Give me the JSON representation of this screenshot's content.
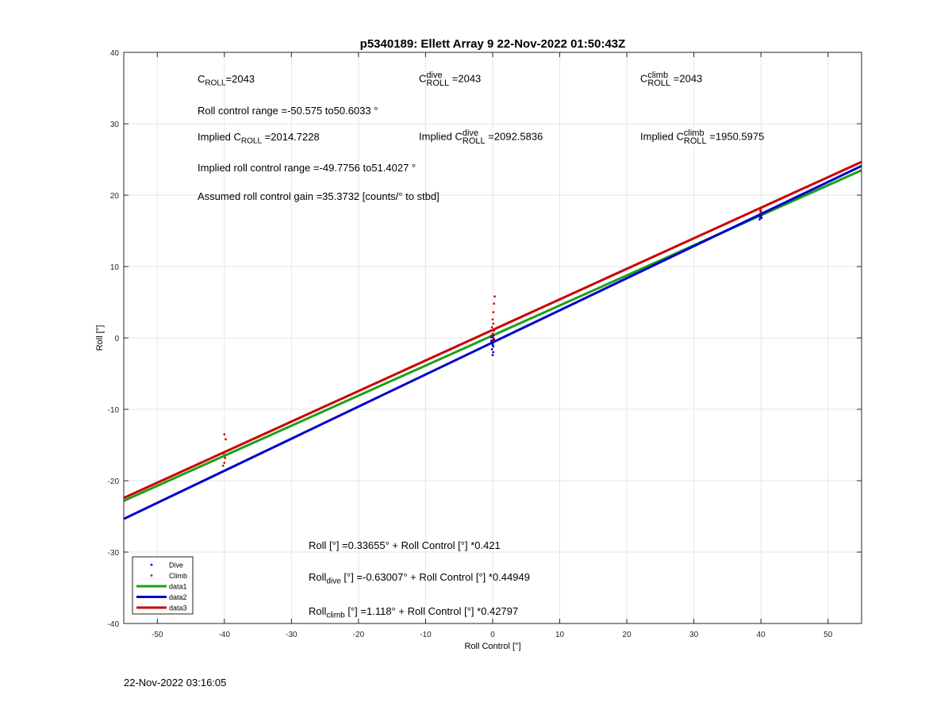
{
  "chart_data": {
    "type": "line",
    "title": "p5340189: Ellett Array 9 22-Nov-2022 01:50:43Z",
    "xlabel": "Roll Control [°]",
    "ylabel": "Roll [°]",
    "xlim": [
      -55,
      55
    ],
    "ylim": [
      -40,
      40
    ],
    "xticks": [
      -50,
      -40,
      -30,
      -20,
      -10,
      0,
      10,
      20,
      30,
      40,
      50
    ],
    "yticks": [
      -40,
      -30,
      -20,
      -10,
      0,
      10,
      20,
      30,
      40
    ],
    "grid": true,
    "legend_position": "bottom-left",
    "series": [
      {
        "name": "Dive",
        "kind": "scatter",
        "color": "#0000cc",
        "points": [
          [
            -0.2,
            -0.4
          ],
          [
            0.0,
            -0.8
          ],
          [
            0.1,
            -1.2
          ],
          [
            -0.1,
            -1.6
          ],
          [
            0.1,
            -2.0
          ],
          [
            0.0,
            -2.4
          ],
          [
            0.2,
            -0.2
          ],
          [
            -0.2,
            0.1
          ],
          [
            0.0,
            -1.0
          ],
          [
            0.1,
            0.3
          ],
          [
            39.8,
            16.6
          ],
          [
            39.9,
            16.9
          ],
          [
            40.0,
            17.1
          ],
          [
            39.9,
            17.4
          ],
          [
            40.0,
            17.7
          ],
          [
            39.8,
            17.2
          ],
          [
            40.1,
            16.8
          ]
        ]
      },
      {
        "name": "Climb",
        "kind": "scatter",
        "color": "#dd0000",
        "points": [
          [
            -40.0,
            -13.5
          ],
          [
            -39.8,
            -14.2
          ],
          [
            -40.1,
            -16.2
          ],
          [
            -39.9,
            -16.8
          ],
          [
            -40.0,
            -17.5
          ],
          [
            -40.2,
            -17.9
          ],
          [
            0.3,
            5.8
          ],
          [
            0.2,
            4.8
          ],
          [
            0.1,
            3.6
          ],
          [
            0.0,
            2.6
          ],
          [
            0.1,
            2.0
          ],
          [
            -0.1,
            1.5
          ],
          [
            0.2,
            1.0
          ],
          [
            0.0,
            0.6
          ],
          [
            -0.2,
            0.3
          ],
          [
            0.1,
            0.0
          ],
          [
            0.0,
            -0.3
          ],
          [
            40.0,
            18.1
          ],
          [
            39.9,
            17.8
          ],
          [
            40.0,
            17.5
          ]
        ]
      },
      {
        "name": "data1",
        "kind": "line",
        "color": "#1aa01a",
        "intercept": 0.33655,
        "slope": 0.421
      },
      {
        "name": "data2",
        "kind": "line",
        "color": "#0000cc",
        "intercept": -0.63007,
        "slope": 0.44949
      },
      {
        "name": "data3",
        "kind": "line",
        "color": "#cc0000",
        "intercept": 1.118,
        "slope": 0.42797
      }
    ]
  },
  "annotations": {
    "c_roll_value": "2043",
    "c_roll_dive_value": "2043",
    "c_roll_climb_value": "2043",
    "roll_range_text": "Roll control range =-50.575 to50.6033 °",
    "implied_c_roll_value": "2014.7228",
    "implied_c_roll_dive_value": "2092.5836",
    "implied_c_roll_climb_value": "1950.5975",
    "implied_range_text": "Implied roll control range =-49.7756 to51.4027 °",
    "gain_text": "Assumed roll control gain =35.3732 [counts/° to stbd]",
    "fit_all_text": "Roll [°] =0.33655° + Roll Control [°] *0.421",
    "fit_dive_rest": " [°] =-0.63007° + Roll Control [°] *0.44949",
    "fit_climb_rest": " [°] =1.118° + Roll Control [°] *0.42797"
  },
  "footer_timestamp": "22-Nov-2022 03:16:05"
}
